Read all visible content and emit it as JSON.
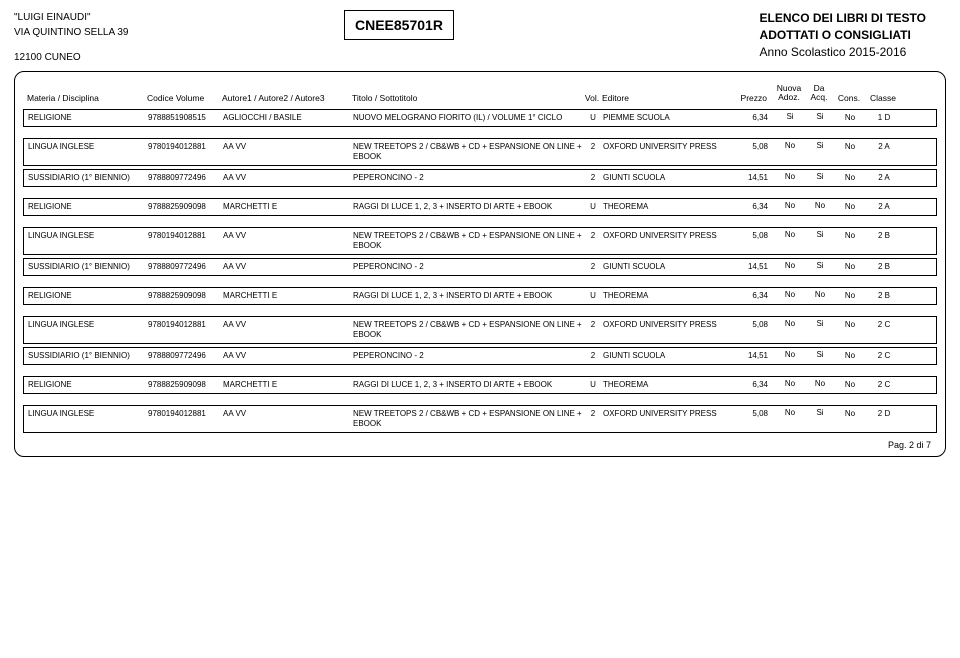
{
  "header": {
    "school_name": "\"LUIGI EINAUDI\"",
    "address": "VIA QUINTINO SELLA 39",
    "city": "12100   CUNEO",
    "code": "CNEE85701R",
    "title_line1": "ELENCO DEI LIBRI DI TESTO",
    "title_line2": "ADOTTATI O CONSIGLIATI",
    "year": "Anno Scolastico 2015-2016"
  },
  "columns": {
    "materia": "Materia / Disciplina",
    "codice": "Codice Volume",
    "autore": "Autore1 / Autore2 / Autore3",
    "titolo": "Titolo / Sottotitolo",
    "vol": "Vol.",
    "editore": "Editore",
    "prezzo": "Prezzo",
    "nuova1": "Nuova",
    "nuova2": "Adoz.",
    "da1": "Da",
    "da2": "Acq.",
    "cons": "Cons.",
    "classe": "Classe"
  },
  "rows": [
    {
      "materia": "RELIGIONE",
      "codice": "9788851908515",
      "autore": "AGLIOCCHI / BASILE",
      "titolo": "NUOVO MELOGRANO FIORITO (IL) / VOLUME 1° CICLO",
      "vol": "U",
      "editore": "PIEMME SCUOLA",
      "prezzo": "6,34",
      "nuova": "Si",
      "da": "Si",
      "cons": "No",
      "classe": "1 D",
      "gap": true
    },
    {
      "materia": "LINGUA INGLESE",
      "codice": "9780194012881",
      "autore": "AA VV",
      "titolo": "NEW TREETOPS 2 / CB&WB + CD + ESPANSIONE ON LINE + EBOOK",
      "vol": "2",
      "editore": "OXFORD UNIVERSITY PRESS",
      "prezzo": "5,08",
      "nuova": "No",
      "da": "Si",
      "cons": "No",
      "classe": "2 A"
    },
    {
      "materia": "SUSSIDIARIO (1° BIENNIO)",
      "codice": "9788809772496",
      "autore": "AA VV",
      "titolo": "PEPERONCINO - 2",
      "vol": "2",
      "editore": "GIUNTI SCUOLA",
      "prezzo": "14,51",
      "nuova": "No",
      "da": "Si",
      "cons": "No",
      "classe": "2 A",
      "gap": true
    },
    {
      "materia": "RELIGIONE",
      "codice": "9788825909098",
      "autore": "MARCHETTI E",
      "titolo": "RAGGI DI LUCE 1, 2, 3 + INSERTO DI ARTE + EBOOK",
      "vol": "U",
      "editore": "THEOREMA",
      "prezzo": "6,34",
      "nuova": "No",
      "da": "No",
      "cons": "No",
      "classe": "2 A",
      "gap": true
    },
    {
      "materia": "LINGUA INGLESE",
      "codice": "9780194012881",
      "autore": "AA VV",
      "titolo": "NEW TREETOPS 2 / CB&WB + CD + ESPANSIONE ON LINE + EBOOK",
      "vol": "2",
      "editore": "OXFORD UNIVERSITY PRESS",
      "prezzo": "5,08",
      "nuova": "No",
      "da": "Si",
      "cons": "No",
      "classe": "2 B"
    },
    {
      "materia": "SUSSIDIARIO (1° BIENNIO)",
      "codice": "9788809772496",
      "autore": "AA VV",
      "titolo": "PEPERONCINO - 2",
      "vol": "2",
      "editore": "GIUNTI SCUOLA",
      "prezzo": "14,51",
      "nuova": "No",
      "da": "Si",
      "cons": "No",
      "classe": "2 B",
      "gap": true
    },
    {
      "materia": "RELIGIONE",
      "codice": "9788825909098",
      "autore": "MARCHETTI E",
      "titolo": "RAGGI DI LUCE 1, 2, 3 + INSERTO DI ARTE + EBOOK",
      "vol": "U",
      "editore": "THEOREMA",
      "prezzo": "6,34",
      "nuova": "No",
      "da": "No",
      "cons": "No",
      "classe": "2 B",
      "gap": true
    },
    {
      "materia": "LINGUA INGLESE",
      "codice": "9780194012881",
      "autore": "AA VV",
      "titolo": "NEW TREETOPS 2 / CB&WB + CD + ESPANSIONE ON LINE + EBOOK",
      "vol": "2",
      "editore": "OXFORD UNIVERSITY PRESS",
      "prezzo": "5,08",
      "nuova": "No",
      "da": "Si",
      "cons": "No",
      "classe": "2 C"
    },
    {
      "materia": "SUSSIDIARIO (1° BIENNIO)",
      "codice": "9788809772496",
      "autore": "AA VV",
      "titolo": "PEPERONCINO - 2",
      "vol": "2",
      "editore": "GIUNTI SCUOLA",
      "prezzo": "14,51",
      "nuova": "No",
      "da": "Si",
      "cons": "No",
      "classe": "2 C",
      "gap": true
    },
    {
      "materia": "RELIGIONE",
      "codice": "9788825909098",
      "autore": "MARCHETTI E",
      "titolo": "RAGGI DI LUCE 1, 2, 3 + INSERTO DI ARTE + EBOOK",
      "vol": "U",
      "editore": "THEOREMA",
      "prezzo": "6,34",
      "nuova": "No",
      "da": "No",
      "cons": "No",
      "classe": "2 C",
      "gap": true
    },
    {
      "materia": "LINGUA INGLESE",
      "codice": "9780194012881",
      "autore": "AA VV",
      "titolo": "NEW TREETOPS 2 / CB&WB + CD + ESPANSIONE ON LINE + EBOOK",
      "vol": "2",
      "editore": "OXFORD UNIVERSITY PRESS",
      "prezzo": "5,08",
      "nuova": "No",
      "da": "Si",
      "cons": "No",
      "classe": "2 D"
    }
  ],
  "footer": {
    "page": "Pag. 2 di 7"
  }
}
